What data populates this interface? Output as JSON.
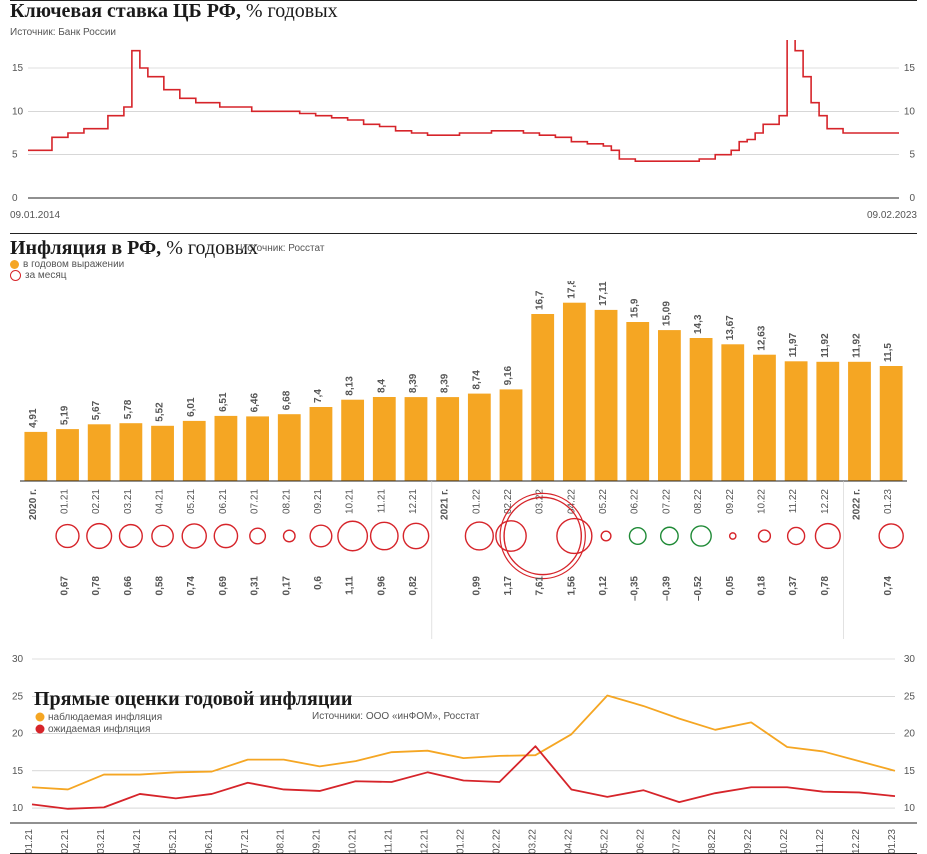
{
  "panel1": {
    "title_bold": "Ключевая ставка ЦБ РФ,",
    "title_unit": "% годовых",
    "source": "Источник: Банк России",
    "x_start_label": "09.01.2014",
    "x_end_label": "09.02.2023",
    "yticks": [
      0,
      5,
      10,
      15
    ],
    "ylim": [
      0,
      18
    ],
    "line_color": "#d6242a",
    "line_width": 1.6,
    "grid_color": "#bfbfbf",
    "bg_color": "#ffffff",
    "data": [
      [
        0,
        5.5
      ],
      [
        3,
        5.5
      ],
      [
        3,
        7
      ],
      [
        5,
        7
      ],
      [
        5,
        7.5
      ],
      [
        7,
        7.5
      ],
      [
        7,
        8
      ],
      [
        10,
        8
      ],
      [
        10,
        9.5
      ],
      [
        12,
        9.5
      ],
      [
        12,
        10.5
      ],
      [
        13,
        10.5
      ],
      [
        13,
        17
      ],
      [
        14,
        17
      ],
      [
        14,
        15
      ],
      [
        15,
        15
      ],
      [
        15,
        14
      ],
      [
        17,
        14
      ],
      [
        17,
        12.5
      ],
      [
        19,
        12.5
      ],
      [
        19,
        11.5
      ],
      [
        21,
        11.5
      ],
      [
        21,
        11
      ],
      [
        24,
        11
      ],
      [
        24,
        10.5
      ],
      [
        28,
        10.5
      ],
      [
        28,
        10
      ],
      [
        34,
        10
      ],
      [
        34,
        9.75
      ],
      [
        36,
        9.75
      ],
      [
        36,
        9.5
      ],
      [
        38,
        9.5
      ],
      [
        38,
        9.25
      ],
      [
        40,
        9.25
      ],
      [
        40,
        9
      ],
      [
        42,
        9
      ],
      [
        42,
        8.5
      ],
      [
        44,
        8.5
      ],
      [
        44,
        8.25
      ],
      [
        46,
        8.25
      ],
      [
        46,
        7.75
      ],
      [
        48,
        7.75
      ],
      [
        48,
        7.5
      ],
      [
        50,
        7.5
      ],
      [
        50,
        7.25
      ],
      [
        54,
        7.25
      ],
      [
        54,
        7.5
      ],
      [
        58,
        7.5
      ],
      [
        58,
        7.75
      ],
      [
        62,
        7.75
      ],
      [
        62,
        7.5
      ],
      [
        64,
        7.5
      ],
      [
        64,
        7.25
      ],
      [
        66,
        7.25
      ],
      [
        66,
        7
      ],
      [
        68,
        7
      ],
      [
        68,
        6.5
      ],
      [
        70,
        6.5
      ],
      [
        70,
        6.25
      ],
      [
        72,
        6.25
      ],
      [
        72,
        6
      ],
      [
        73,
        6
      ],
      [
        73,
        5.5
      ],
      [
        74,
        5.5
      ],
      [
        74,
        4.5
      ],
      [
        76,
        4.5
      ],
      [
        76,
        4.25
      ],
      [
        84,
        4.25
      ],
      [
        84,
        4.5
      ],
      [
        86,
        4.5
      ],
      [
        86,
        5
      ],
      [
        88,
        5
      ],
      [
        88,
        5.5
      ],
      [
        89,
        5.5
      ],
      [
        89,
        6.5
      ],
      [
        90,
        6.5
      ],
      [
        90,
        6.75
      ],
      [
        91,
        6.75
      ],
      [
        91,
        7.5
      ],
      [
        92,
        7.5
      ],
      [
        92,
        8.5
      ],
      [
        94,
        8.5
      ],
      [
        94,
        9.5
      ],
      [
        95,
        9.5
      ],
      [
        95,
        20
      ],
      [
        96,
        20
      ],
      [
        96,
        17
      ],
      [
        97,
        17
      ],
      [
        97,
        14
      ],
      [
        98,
        14
      ],
      [
        98,
        11
      ],
      [
        99,
        11
      ],
      [
        99,
        9.5
      ],
      [
        100,
        9.5
      ],
      [
        100,
        8
      ],
      [
        102,
        8
      ],
      [
        102,
        7.5
      ],
      [
        109,
        7.5
      ]
    ],
    "x_domain": [
      0,
      109
    ]
  },
  "panel2": {
    "title_bold": "Инфляция в РФ,",
    "title_unit": "% годовых",
    "source": "Источник: Росстат",
    "legend_yoy": "в годовом выражении",
    "legend_mom": "за месяц",
    "dot_yoy_fill": "#f5a623",
    "dot_mom_stroke": "#d6242a",
    "bar_color": "#f5a623",
    "bar_width": 0.72,
    "ylim": [
      0,
      18
    ],
    "label_fontsize": 9.5,
    "categories": [
      "2020 г.",
      "01.21",
      "02.21",
      "03.21",
      "04.21",
      "05.21",
      "06.21",
      "07.21",
      "08.21",
      "09.21",
      "10.21",
      "11.21",
      "12.21",
      "2021 г.",
      "01.22",
      "02.22",
      "03.22",
      "04.22",
      "05.22",
      "06.22",
      "07.22",
      "08.22",
      "09.22",
      "10.22",
      "11.22",
      "12.22",
      "2022 г.",
      "01.23"
    ],
    "values": [
      4.91,
      5.19,
      5.67,
      5.78,
      5.52,
      6.01,
      6.51,
      6.46,
      6.68,
      7.4,
      8.13,
      8.4,
      8.39,
      8.39,
      8.74,
      9.16,
      16.7,
      17.83,
      17.11,
      15.9,
      15.09,
      14.3,
      13.67,
      12.63,
      11.97,
      11.92,
      11.92,
      11.5
    ],
    "mom_positions": [
      1,
      2,
      3,
      4,
      5,
      6,
      7,
      8,
      9,
      10,
      11,
      12,
      14,
      15,
      16,
      17,
      18,
      19,
      20,
      21,
      22,
      23,
      24,
      25,
      27
    ],
    "mom_values": [
      0.67,
      0.78,
      0.66,
      0.58,
      0.74,
      0.69,
      0.31,
      0.17,
      0.6,
      1.11,
      0.96,
      0.82,
      0.99,
      1.17,
      7.61,
      1.56,
      0.12,
      -0.35,
      -0.39,
      -0.52,
      0.05,
      0.18,
      0.37,
      0.78,
      0.74
    ],
    "mom_circle_scale": 14,
    "mom_circle_min_r": 3,
    "mom_neg_stroke": "#1f8a36",
    "mom_pos_stroke": "#d6242a",
    "mom_special_fill_index": 14,
    "mom_special_extra": true,
    "x_is_annual": [
      true,
      false,
      false,
      false,
      false,
      false,
      false,
      false,
      false,
      false,
      false,
      false,
      false,
      true,
      false,
      false,
      false,
      false,
      false,
      false,
      false,
      false,
      false,
      false,
      false,
      false,
      true,
      false
    ]
  },
  "panel3": {
    "title_bold": "Прямые оценки годовой инфляции",
    "source": "Источники: ООО «инФОМ», Росстат",
    "legend_observed": "наблюдаемая инфляция",
    "legend_expected": "ожидаемая инфляция",
    "color_observed": "#f5a623",
    "color_expected": "#d6242a",
    "line_width": 1.8,
    "yticks": [
      10,
      15,
      20,
      25,
      30
    ],
    "ylim": [
      8,
      30
    ],
    "grid_color": "#bfbfbf",
    "categories": [
      "01.21",
      "02.21",
      "03.21",
      "04.21",
      "05.21",
      "06.21",
      "07.21",
      "08.21",
      "09.21",
      "10.21",
      "11.21",
      "12.21",
      "01.22",
      "02.22",
      "03.22",
      "04.22",
      "05.22",
      "06.22",
      "07.22",
      "08.22",
      "09.22",
      "10.22",
      "11.22",
      "12.22",
      "01.23"
    ],
    "observed": [
      12.8,
      12.5,
      14.5,
      14.5,
      14.8,
      14.9,
      16.5,
      16.5,
      15.6,
      16.3,
      17.5,
      17.7,
      16.7,
      17.0,
      17.1,
      19.9,
      25.1,
      23.7,
      22.0,
      20.5,
      21.5,
      18.2,
      17.6,
      16.3,
      15.0
    ],
    "expected": [
      10.5,
      9.9,
      10.1,
      11.9,
      11.3,
      11.9,
      13.4,
      12.5,
      12.3,
      13.6,
      13.5,
      14.8,
      13.7,
      13.5,
      18.3,
      12.5,
      11.5,
      12.4,
      10.8,
      12.0,
      12.8,
      12.8,
      12.2,
      12.1,
      11.6
    ]
  }
}
